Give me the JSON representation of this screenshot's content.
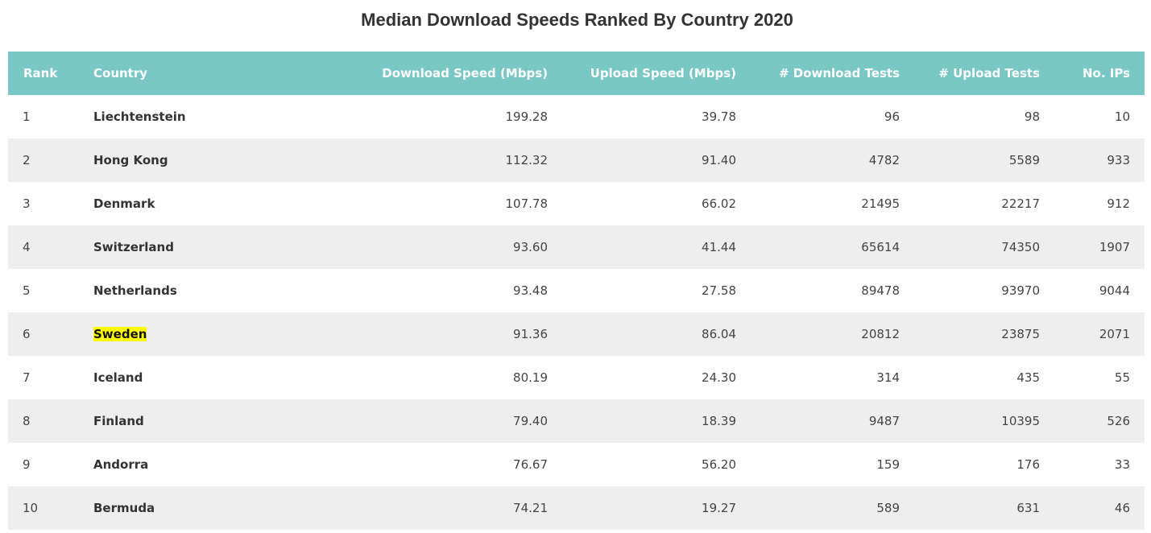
{
  "colors": {
    "header_bg": "#79c8c6",
    "row_alt_bg": "#eeeeee",
    "row_bg": "#ffffff",
    "highlight": "#ffff00"
  },
  "chart_data": {
    "type": "table",
    "title": "Median Download Speeds Ranked By Country 2020",
    "columns": [
      "Rank",
      "Country",
      "Download Speed (Mbps)",
      "Upload Speed (Mbps)",
      "# Download Tests",
      "# Upload Tests",
      "No. IPs"
    ],
    "highlighted_country": "Sweden",
    "rows": [
      {
        "rank": "1",
        "country": "Liechtenstein",
        "download": "199.28",
        "upload": "39.78",
        "download_tests": "96",
        "upload_tests": "98",
        "ips": "10"
      },
      {
        "rank": "2",
        "country": "Hong Kong",
        "download": "112.32",
        "upload": "91.40",
        "download_tests": "4782",
        "upload_tests": "5589",
        "ips": "933"
      },
      {
        "rank": "3",
        "country": "Denmark",
        "download": "107.78",
        "upload": "66.02",
        "download_tests": "21495",
        "upload_tests": "22217",
        "ips": "912"
      },
      {
        "rank": "4",
        "country": "Switzerland",
        "download": "93.60",
        "upload": "41.44",
        "download_tests": "65614",
        "upload_tests": "74350",
        "ips": "1907"
      },
      {
        "rank": "5",
        "country": "Netherlands",
        "download": "93.48",
        "upload": "27.58",
        "download_tests": "89478",
        "upload_tests": "93970",
        "ips": "9044"
      },
      {
        "rank": "6",
        "country": "Sweden",
        "download": "91.36",
        "upload": "86.04",
        "download_tests": "20812",
        "upload_tests": "23875",
        "ips": "2071"
      },
      {
        "rank": "7",
        "country": "Iceland",
        "download": "80.19",
        "upload": "24.30",
        "download_tests": "314",
        "upload_tests": "435",
        "ips": "55"
      },
      {
        "rank": "8",
        "country": "Finland",
        "download": "79.40",
        "upload": "18.39",
        "download_tests": "9487",
        "upload_tests": "10395",
        "ips": "526"
      },
      {
        "rank": "9",
        "country": "Andorra",
        "download": "76.67",
        "upload": "56.20",
        "download_tests": "159",
        "upload_tests": "176",
        "ips": "33"
      },
      {
        "rank": "10",
        "country": "Bermuda",
        "download": "74.21",
        "upload": "19.27",
        "download_tests": "589",
        "upload_tests": "631",
        "ips": "46"
      }
    ]
  }
}
